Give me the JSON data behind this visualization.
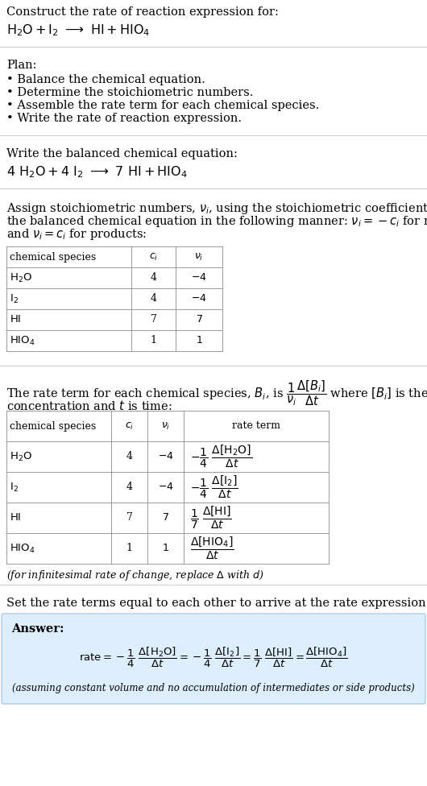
{
  "bg_color": "#ffffff",
  "text_color": "#000000",
  "title_text": "Construct the rate of reaction expression for:",
  "plan_header": "Plan:",
  "plan_items": [
    "• Balance the chemical equation.",
    "• Determine the stoichiometric numbers.",
    "• Assemble the rate term for each chemical species.",
    "• Write the rate of reaction expression."
  ],
  "balanced_header": "Write the balanced chemical equation:",
  "assign_lines": [
    "Assign stoichiometric numbers, $\\nu_i$, using the stoichiometric coefficients, $c_i$, from",
    "the balanced chemical equation in the following manner: $\\nu_i = -c_i$ for reactants",
    "and $\\nu_i = c_i$ for products:"
  ],
  "rate_line1": "The rate term for each chemical species, $B_i$, is $\\dfrac{1}{\\nu_i}\\dfrac{\\Delta[B_i]}{\\Delta t}$ where $[B_i]$ is the amount",
  "rate_line2": "concentration and $t$ is time:",
  "infinitesimal_note": "(for infinitesimal rate of change, replace $\\Delta$ with $d$)",
  "set_rate_text": "Set the rate terms equal to each other to arrive at the rate expression:",
  "answer_label": "Answer:",
  "answer_note": "(assuming constant volume and no accumulation of intermediates or side products)",
  "answer_box_color": "#ddeeff",
  "answer_box_edge": "#aaccee",
  "table_line_color": "#999999",
  "sep_line_color": "#cccccc"
}
